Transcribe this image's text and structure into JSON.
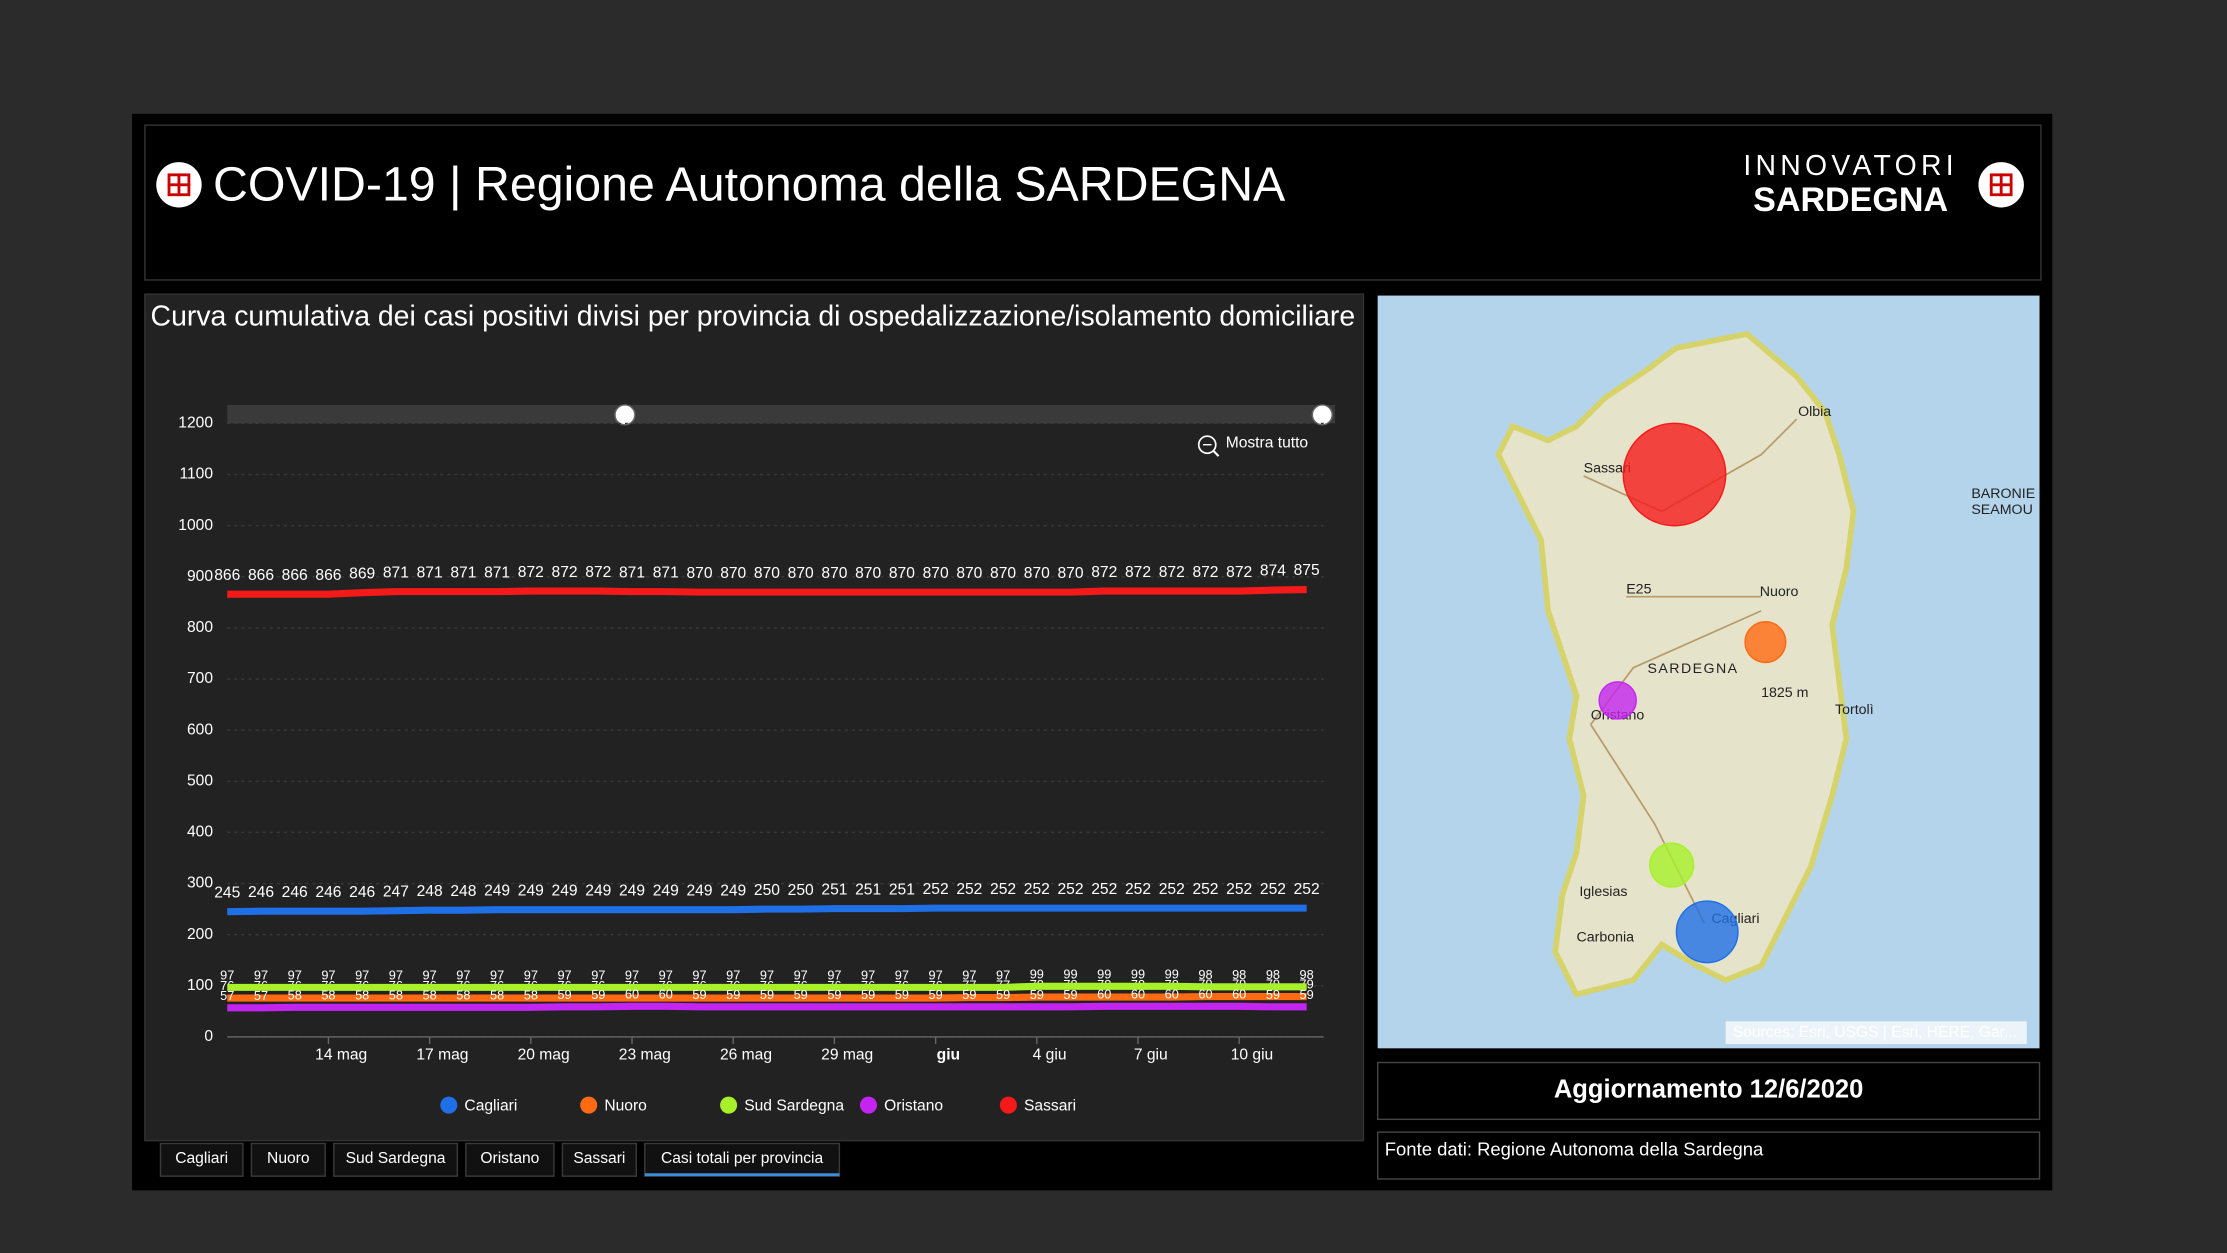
{
  "header": {
    "title": "COVID-19 | Regione Autonoma della SARDEGNA",
    "logo_top": "INNOVATORI",
    "logo_bottom": "SARDEGNA"
  },
  "chart_data": {
    "type": "line",
    "title": "Curva cumulativa dei casi positivi divisi per provincia di ospedalizzazione/isolamento domiciliare",
    "zoom_button": "Mostra tutto",
    "categories": [
      null,
      null,
      null,
      "14 mag",
      null,
      null,
      "17 mag",
      null,
      null,
      "20 mag",
      null,
      null,
      "23 mag",
      null,
      null,
      "26 mag",
      null,
      null,
      "29 mag",
      null,
      null,
      "giu",
      null,
      null,
      "4 giu",
      null,
      null,
      "7 giu",
      null,
      null,
      "10 giu",
      null,
      null
    ],
    "series": [
      {
        "name": "Cagliari",
        "color": "#1f6fe6",
        "values": [
          245,
          246,
          246,
          246,
          246,
          247,
          248,
          248,
          249,
          249,
          249,
          249,
          249,
          249,
          249,
          249,
          250,
          250,
          251,
          251,
          251,
          252,
          252,
          252,
          252,
          252,
          252,
          252,
          252,
          252,
          252,
          252,
          252
        ]
      },
      {
        "name": "Nuoro",
        "color": "#ff6a13",
        "values": [
          76,
          76,
          76,
          76,
          76,
          76,
          76,
          76,
          76,
          76,
          76,
          76,
          76,
          76,
          76,
          76,
          76,
          76,
          76,
          76,
          76,
          76,
          77,
          77,
          78,
          78,
          78,
          78,
          78,
          79,
          79,
          79,
          79
        ]
      },
      {
        "name": "Sud Sardegna",
        "color": "#a8f02a",
        "values": [
          97,
          97,
          97,
          97,
          97,
          97,
          97,
          97,
          97,
          97,
          97,
          97,
          97,
          97,
          97,
          97,
          97,
          97,
          97,
          97,
          97,
          97,
          97,
          97,
          99,
          99,
          99,
          99,
          99,
          98,
          98,
          98,
          98
        ]
      },
      {
        "name": "Oristano",
        "color": "#c424f0",
        "values": [
          57,
          57,
          58,
          58,
          58,
          58,
          58,
          58,
          58,
          58,
          59,
          59,
          60,
          60,
          59,
          59,
          59,
          59,
          59,
          59,
          59,
          59,
          59,
          59,
          59,
          59,
          60,
          60,
          60,
          60,
          60,
          59,
          59
        ]
      },
      {
        "name": "Sassari",
        "color": "#f51a1a",
        "values": [
          866,
          866,
          866,
          866,
          869,
          871,
          871,
          871,
          871,
          872,
          872,
          872,
          871,
          871,
          870,
          870,
          870,
          870,
          870,
          870,
          870,
          870,
          870,
          870,
          870,
          870,
          872,
          872,
          872,
          872,
          872,
          874,
          875
        ]
      }
    ],
    "ylim": [
      0,
      1200
    ],
    "yticks": [
      0,
      100,
      200,
      300,
      400,
      500,
      600,
      700,
      800,
      900,
      1000,
      1100,
      1200
    ],
    "grid": true,
    "legend": "bottom"
  },
  "map": {
    "places": [
      "Olbia",
      "Sassari",
      "Nuoro",
      "SARDEGNA",
      "1825 m",
      "Oristano",
      "Tortolì",
      "Iglesias",
      "Carbonia",
      "Cagliari",
      "E25",
      "BARONIE",
      "SEAMOU"
    ],
    "attribution": "Sources: Esri, USGS | Esri, HERE, Gar..."
  },
  "update": "Aggiornamento 12/6/2020",
  "source": "Fonte dati: Regione Autonoma della Sardegna",
  "tabs": [
    "Cagliari",
    "Nuoro",
    "Sud Sardegna",
    "Oristano",
    "Sassari",
    "Casi totali per provincia"
  ]
}
